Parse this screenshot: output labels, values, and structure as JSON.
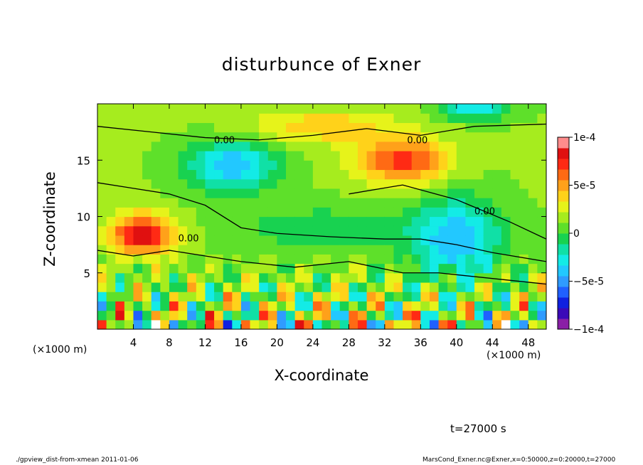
{
  "chart_data": {
    "type": "heatmap",
    "title": "disturbunce of Exner",
    "xlabel": "X-coordinate",
    "ylabel": "Z-coordinate",
    "x_unit": "(×1000 m)",
    "xlim": [
      0,
      50
    ],
    "ylim": [
      0,
      20
    ],
    "x_ticks": [
      4,
      8,
      12,
      16,
      20,
      24,
      28,
      32,
      36,
      40,
      44,
      48
    ],
    "y_ticks": [
      5,
      10,
      15
    ],
    "colorbar": {
      "range": [
        -0.0001,
        0.0001
      ],
      "tick_values": [
        0.0001,
        5e-05,
        0,
        -5e-05,
        -0.0001
      ],
      "tick_labels": [
        "1e-4",
        "5e-5",
        "0",
        "−5e-5",
        "−1e-4"
      ],
      "colors": [
        "#8a1fa6",
        "#3b0ab8",
        "#1020e0",
        "#2060ff",
        "#2f9bff",
        "#22c8ff",
        "#13ebe6",
        "#10e0a6",
        "#18d250",
        "#5ee02a",
        "#a6ec1e",
        "#e6f31a",
        "#ffd21a",
        "#ffa11a",
        "#ff6a14",
        "#ff2a14",
        "#e01010",
        "#ff8c8c"
      ]
    },
    "contour_label": "0.00",
    "time_label": "t=27000 s"
  },
  "footer": {
    "left": "./gpview_dist-from-xmean  2011-01-06",
    "right": "MarsCond_Exner.nc@Exner,x=0:50000,z=0:20000,t=27000"
  },
  "colors": {
    "background": "#ffffff"
  }
}
